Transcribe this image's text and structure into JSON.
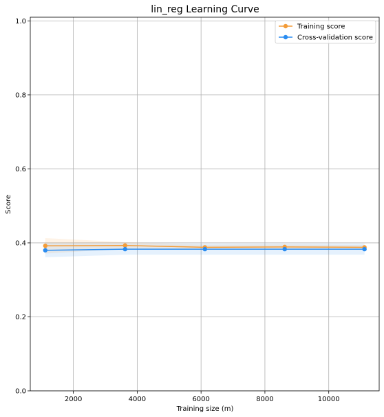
{
  "chart_data": {
    "type": "line",
    "title": "lin_reg Learning Curve",
    "xlabel": "Training size (m)",
    "ylabel": "Score",
    "xlim": [
      650,
      11580
    ],
    "ylim": [
      0.0,
      1.01
    ],
    "xticks": [
      2000,
      4000,
      6000,
      8000,
      10000
    ],
    "yticks": [
      0.0,
      0.2,
      0.4,
      0.6,
      0.8,
      1.0
    ],
    "xtick_labels": [
      "2000",
      "4000",
      "6000",
      "8000",
      "10000"
    ],
    "ytick_labels": [
      "0.0",
      "0.2",
      "0.4",
      "0.6",
      "0.8",
      "1.0"
    ],
    "grid": true,
    "legend_position": "top-right",
    "x": [
      1120,
      3620,
      6120,
      8620,
      11120
    ],
    "series": [
      {
        "name": "Training score",
        "color": "#f39c38",
        "values": [
          0.392,
          0.393,
          0.388,
          0.389,
          0.388
        ],
        "band_low": [
          0.371,
          0.384,
          0.381,
          0.382,
          0.382
        ],
        "band_high": [
          0.413,
          0.402,
          0.395,
          0.396,
          0.394
        ]
      },
      {
        "name": "Cross-validation score",
        "color": "#2a8cf0",
        "values": [
          0.38,
          0.383,
          0.383,
          0.383,
          0.383
        ],
        "band_low": [
          0.361,
          0.368,
          0.368,
          0.368,
          0.368
        ],
        "band_high": [
          0.399,
          0.398,
          0.398,
          0.398,
          0.398
        ]
      }
    ]
  }
}
